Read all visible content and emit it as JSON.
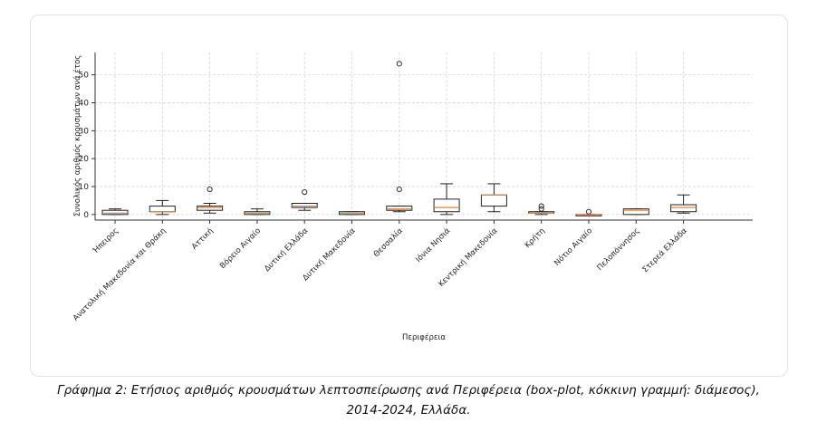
{
  "caption": "Γράφημα 2: Ετήσιος αριθμός κρουσμάτων λεπτοσπείρωσης ανά Περιφέρεια (box-plot, κόκκινη γραμμή: διάμεσος), 2014-2024, Ελλάδα.",
  "colors": {
    "box": "#222222",
    "median": "#e8833a",
    "grid": "#cfcfcf",
    "axis": "#333333"
  },
  "chart_data": {
    "type": "boxplot",
    "xlabel": "Περιφέρεια",
    "ylabel": "Συνολικός αριθμός κρουσμάτων ανά έτος",
    "ylim": [
      -2,
      58
    ],
    "yticks": [
      0,
      10,
      20,
      30,
      40,
      50
    ],
    "grid": true,
    "categories": [
      "Ήπειρος",
      "Ανατολική Μακεδονία και Θράκη",
      "Αττική",
      "Βόρειο Αιγαίο",
      "Δυτική Ελλάδα",
      "Δυτική Μακεδονία",
      "Θεσσαλία",
      "Ιόνια Νησιά",
      "Κεντρική Μακεδονία",
      "Κρήτη",
      "Νότιο Αιγαίο",
      "Πελοπόννησος",
      "Στερεά Ελλάδα"
    ],
    "boxes": [
      {
        "whislo": 0,
        "q1": 0,
        "med": 0.5,
        "q3": 1.5,
        "whishi": 2,
        "fliers": []
      },
      {
        "whislo": 0,
        "q1": 1,
        "med": 1,
        "q3": 3,
        "whishi": 5,
        "fliers": []
      },
      {
        "whislo": 0.5,
        "q1": 1.5,
        "med": 2.5,
        "q3": 3,
        "whishi": 4,
        "fliers": [
          9
        ]
      },
      {
        "whislo": 0,
        "q1": 0,
        "med": 0.5,
        "q3": 1,
        "whishi": 2,
        "fliers": []
      },
      {
        "whislo": 1.5,
        "q1": 2.5,
        "med": 3,
        "q3": 4,
        "whishi": 4,
        "fliers": [
          8
        ]
      },
      {
        "whislo": 0,
        "q1": 0,
        "med": 0.5,
        "q3": 1,
        "whishi": 1,
        "fliers": []
      },
      {
        "whislo": 1,
        "q1": 1.5,
        "med": 2,
        "q3": 3,
        "whishi": 3,
        "fliers": [
          9,
          54
        ]
      },
      {
        "whislo": 0,
        "q1": 1,
        "med": 2.5,
        "q3": 5.5,
        "whishi": 11,
        "fliers": []
      },
      {
        "whislo": 1,
        "q1": 3,
        "med": 7,
        "q3": 7,
        "whishi": 11,
        "fliers": []
      },
      {
        "whislo": 0,
        "q1": 0.5,
        "med": 0.5,
        "q3": 1,
        "whishi": 1,
        "fliers": [
          2,
          3
        ]
      },
      {
        "whislo": 0,
        "q1": 0,
        "med": 0,
        "q3": 0,
        "whishi": 0,
        "fliers": [
          1
        ]
      },
      {
        "whislo": 0,
        "q1": 0,
        "med": 1.5,
        "q3": 2,
        "whishi": 2,
        "fliers": []
      },
      {
        "whislo": 0.5,
        "q1": 1,
        "med": 2.5,
        "q3": 3.5,
        "whishi": 7,
        "fliers": []
      }
    ]
  }
}
